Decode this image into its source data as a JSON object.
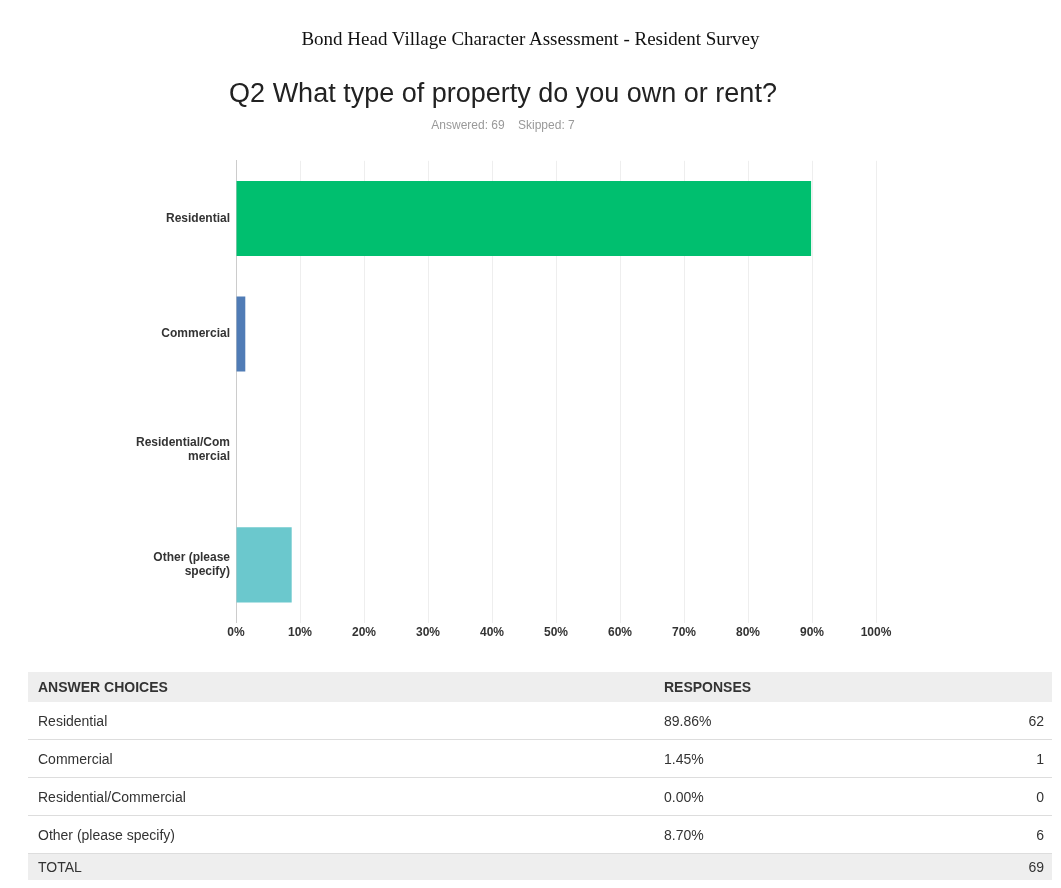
{
  "chart_data": [
    {
      "type": "bar",
      "orientation": "horizontal",
      "title": "Q2 What type of property do you own or rent?",
      "subtitle": "Answered: 69    Skipped: 7",
      "annotations": [
        "Bond Head Village Character Assessment - Resident Survey"
      ],
      "categories": [
        "Residential",
        "Commercial",
        "Residential/Commercial",
        "Other (please specify)"
      ],
      "values": [
        89.86,
        1.45,
        0,
        8.7
      ],
      "colors": [
        "#00bf6f",
        "#507cb6",
        "#9d7fc5",
        "#6bc8cd"
      ],
      "value_labels": [
        "89.86%",
        "1.45%",
        "0.00%",
        "8.70%"
      ],
      "xlim": [
        0,
        100
      ],
      "xticks": [
        {
          "value": 0,
          "label": "0%"
        },
        {
          "value": 10,
          "label": "10%"
        },
        {
          "value": 20,
          "label": "20%"
        },
        {
          "value": 30,
          "label": "30%"
        },
        {
          "value": 40,
          "label": "40%"
        },
        {
          "value": 50,
          "label": "50%"
        },
        {
          "value": 60,
          "label": "60%"
        },
        {
          "value": 70,
          "label": "70%"
        },
        {
          "value": 80,
          "label": "80%"
        },
        {
          "value": 90,
          "label": "90%"
        },
        {
          "value": 100,
          "label": "100%"
        }
      ],
      "grid": "x",
      "legend": false
    },
    {
      "type": "other",
      "annotations": [
        "ANSWER CHOICES",
        "RESPONSES",
        "TOTAL"
      ],
      "categories": [
        "Residential",
        "Commercial",
        "Residential/Commercial",
        "Other (please specify)"
      ],
      "values": [
        62,
        1,
        0,
        6
      ],
      "data_labels": true,
      "totals": [
        "69"
      ]
    }
  ]
}
